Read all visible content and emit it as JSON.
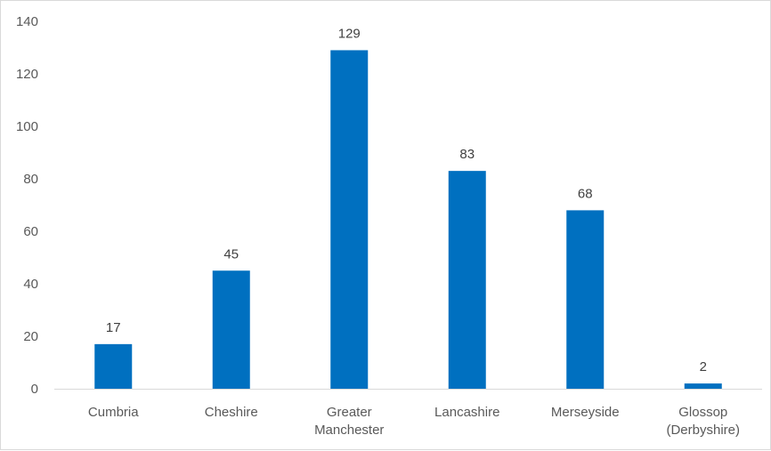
{
  "chart_data": {
    "type": "bar",
    "title": "",
    "xlabel": "",
    "ylabel": "",
    "categories": [
      [
        "Cumbria"
      ],
      [
        "Cheshire"
      ],
      [
        "Greater",
        "Manchester"
      ],
      [
        "Lancashire"
      ],
      [
        "Merseyside"
      ],
      [
        "Glossop",
        "(Derbyshire)"
      ]
    ],
    "values": [
      17,
      45,
      129,
      83,
      68,
      2
    ],
    "ylim": [
      0,
      140
    ],
    "yticks": [
      0,
      20,
      40,
      60,
      80,
      100,
      120,
      140
    ],
    "grid": false,
    "legend": "none",
    "data_labels": true,
    "bar_color": "#0070C0",
    "axis_color": "#d9d9d9"
  }
}
